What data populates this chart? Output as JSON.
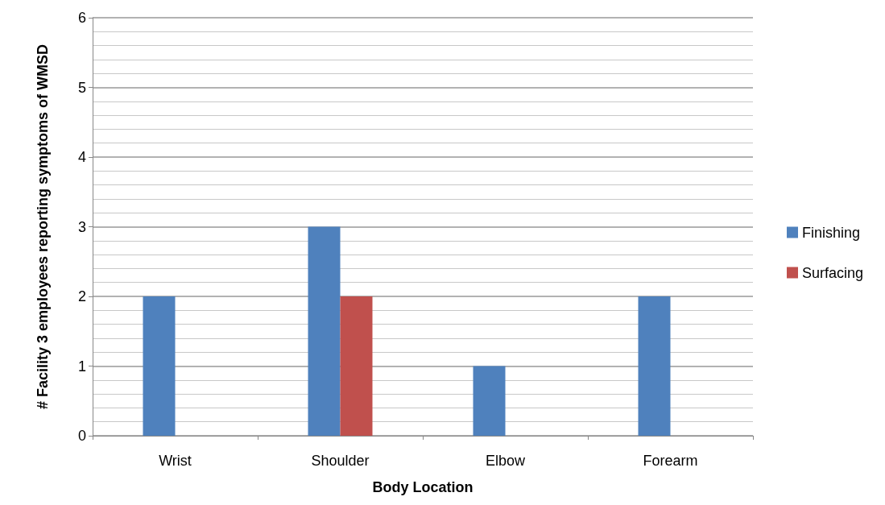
{
  "chart_data": {
    "type": "bar",
    "xlabel": "Body Location",
    "ylabel": "# Facility 3 employees reporting symptoms of WMSD",
    "categories": [
      "Wrist",
      "Shoulder",
      "Elbow",
      "Forearm"
    ],
    "series": [
      {
        "name": "Finishing",
        "color": "#4f81bd",
        "values": [
          2,
          3,
          1,
          2
        ]
      },
      {
        "name": "Surfacing",
        "color": "#c0504d",
        "values": [
          0,
          2,
          0,
          0
        ]
      }
    ],
    "ylim": [
      0,
      6
    ],
    "yticks": [
      0,
      1,
      2,
      3,
      4,
      5,
      6
    ],
    "grid": true,
    "legend": "right"
  }
}
